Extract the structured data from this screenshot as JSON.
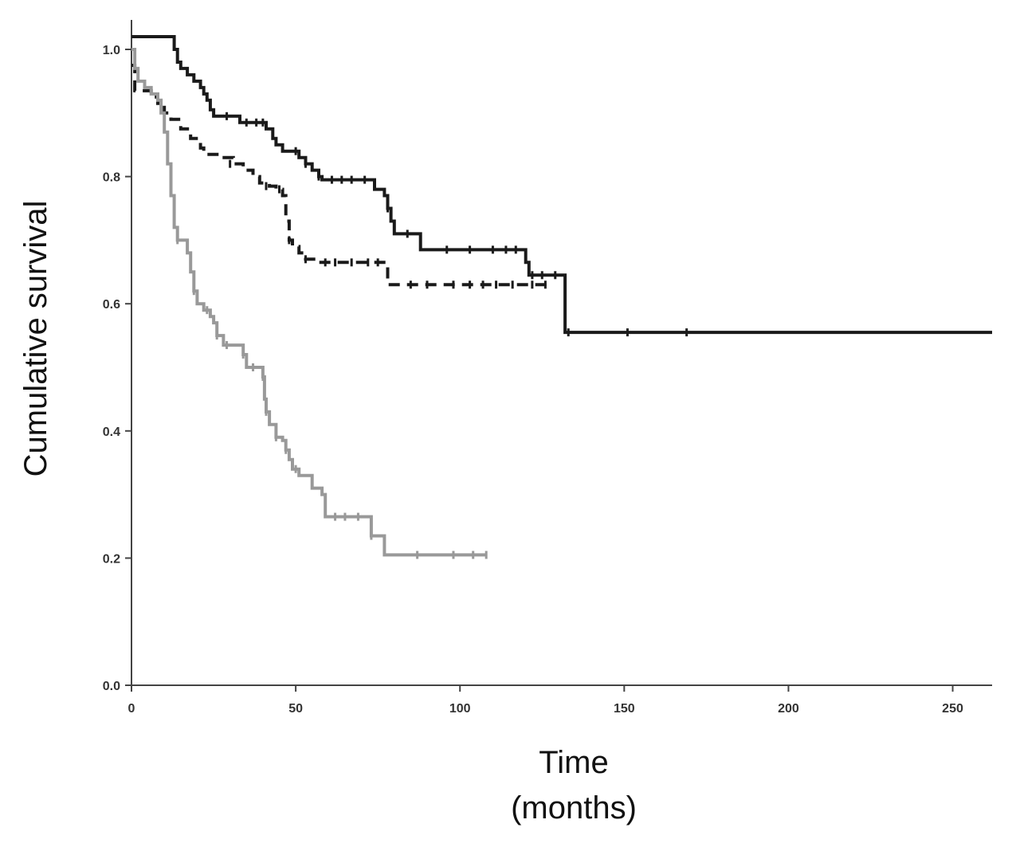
{
  "chart_data": {
    "type": "line",
    "step": true,
    "xlabel": "Time",
    "xlabel_unit": "(months)",
    "ylabel": "Cumulative survival",
    "xlim": [
      0,
      262
    ],
    "ylim": [
      0,
      1.0
    ],
    "x_ticks": [
      0,
      50,
      100,
      150,
      200,
      250
    ],
    "y_ticks": [
      0.0,
      0.2,
      0.4,
      0.6,
      0.8,
      1.0
    ],
    "x_tick_labels": [
      "0",
      "50",
      "100",
      "150",
      "200",
      "250"
    ],
    "y_tick_labels": [
      "0.0",
      "0.2",
      "0.4",
      "0.6",
      "0.8",
      "1.0"
    ],
    "grid": false,
    "legend": "none",
    "series": [
      {
        "style": "solid",
        "color": "#1a1a1a",
        "steps": [
          [
            0,
            1.02
          ],
          [
            12,
            1.02
          ],
          [
            13,
            1.0
          ],
          [
            14,
            0.98
          ],
          [
            15,
            0.97
          ],
          [
            17,
            0.96
          ],
          [
            19,
            0.95
          ],
          [
            21,
            0.94
          ],
          [
            22,
            0.93
          ],
          [
            23,
            0.92
          ],
          [
            24,
            0.905
          ],
          [
            25,
            0.895
          ],
          [
            32,
            0.895
          ],
          [
            33,
            0.885
          ],
          [
            40,
            0.885
          ],
          [
            41,
            0.875
          ],
          [
            43,
            0.86
          ],
          [
            44,
            0.85
          ],
          [
            46,
            0.84
          ],
          [
            50,
            0.84
          ],
          [
            51,
            0.83
          ],
          [
            53,
            0.82
          ],
          [
            55,
            0.81
          ],
          [
            57,
            0.8
          ],
          [
            58,
            0.795
          ],
          [
            73,
            0.795
          ],
          [
            74,
            0.78
          ],
          [
            77,
            0.77
          ],
          [
            78,
            0.75
          ],
          [
            79,
            0.73
          ],
          [
            80,
            0.71
          ],
          [
            87,
            0.71
          ],
          [
            88,
            0.685
          ],
          [
            119,
            0.685
          ],
          [
            120,
            0.665
          ],
          [
            121,
            0.645
          ],
          [
            131,
            0.645
          ],
          [
            132,
            0.555
          ],
          [
            262,
            0.555
          ]
        ],
        "censored": [
          [
            29,
            0.895
          ],
          [
            35,
            0.885
          ],
          [
            38,
            0.885
          ],
          [
            40,
            0.885
          ],
          [
            50,
            0.84
          ],
          [
            53,
            0.82
          ],
          [
            57,
            0.8
          ],
          [
            61,
            0.795
          ],
          [
            64,
            0.795
          ],
          [
            67,
            0.795
          ],
          [
            71,
            0.795
          ],
          [
            78,
            0.75
          ],
          [
            84,
            0.71
          ],
          [
            96,
            0.685
          ],
          [
            103,
            0.685
          ],
          [
            110,
            0.685
          ],
          [
            114,
            0.685
          ],
          [
            117,
            0.685
          ],
          [
            122,
            0.645
          ],
          [
            125,
            0.645
          ],
          [
            129,
            0.645
          ],
          [
            133,
            0.555
          ],
          [
            151,
            0.555
          ],
          [
            169,
            0.555
          ]
        ]
      },
      {
        "style": "dashed",
        "color": "#1a1a1a",
        "steps": [
          [
            0,
            0.975
          ],
          [
            1,
            0.935
          ],
          [
            5,
            0.935
          ],
          [
            6,
            0.925
          ],
          [
            8,
            0.915
          ],
          [
            10,
            0.9
          ],
          [
            12,
            0.89
          ],
          [
            15,
            0.875
          ],
          [
            18,
            0.86
          ],
          [
            21,
            0.845
          ],
          [
            22,
            0.835
          ],
          [
            25,
            0.835
          ],
          [
            27,
            0.83
          ],
          [
            31,
            0.82
          ],
          [
            34,
            0.81
          ],
          [
            37,
            0.8
          ],
          [
            39,
            0.79
          ],
          [
            42,
            0.785
          ],
          [
            44,
            0.78
          ],
          [
            46,
            0.77
          ],
          [
            47,
            0.73
          ],
          [
            48,
            0.7
          ],
          [
            49,
            0.69
          ],
          [
            51,
            0.68
          ],
          [
            53,
            0.67
          ],
          [
            57,
            0.665
          ],
          [
            77,
            0.665
          ],
          [
            78,
            0.63
          ],
          [
            128,
            0.63
          ]
        ],
        "censored": [
          [
            30,
            0.82
          ],
          [
            41,
            0.785
          ],
          [
            45,
            0.78
          ],
          [
            48,
            0.7
          ],
          [
            53,
            0.67
          ],
          [
            59,
            0.665
          ],
          [
            62,
            0.665
          ],
          [
            67,
            0.665
          ],
          [
            72,
            0.665
          ],
          [
            75,
            0.665
          ],
          [
            85,
            0.63
          ],
          [
            90,
            0.63
          ],
          [
            98,
            0.63
          ],
          [
            103,
            0.63
          ],
          [
            107,
            0.63
          ],
          [
            111,
            0.63
          ],
          [
            116,
            0.63
          ],
          [
            122,
            0.63
          ],
          [
            126,
            0.63
          ]
        ]
      },
      {
        "style": "solid",
        "color": "#999999",
        "steps": [
          [
            0,
            1.0
          ],
          [
            1,
            0.97
          ],
          [
            2,
            0.95
          ],
          [
            4,
            0.94
          ],
          [
            6,
            0.93
          ],
          [
            8,
            0.92
          ],
          [
            9,
            0.9
          ],
          [
            10,
            0.87
          ],
          [
            11,
            0.82
          ],
          [
            12,
            0.77
          ],
          [
            13,
            0.72
          ],
          [
            14,
            0.7
          ],
          [
            17,
            0.68
          ],
          [
            18,
            0.65
          ],
          [
            19,
            0.62
          ],
          [
            20,
            0.6
          ],
          [
            22,
            0.59
          ],
          [
            24,
            0.58
          ],
          [
            25,
            0.57
          ],
          [
            26,
            0.55
          ],
          [
            28,
            0.535
          ],
          [
            33,
            0.535
          ],
          [
            34,
            0.52
          ],
          [
            35,
            0.5
          ],
          [
            39,
            0.5
          ],
          [
            40,
            0.485
          ],
          [
            40.5,
            0.45
          ],
          [
            41,
            0.43
          ],
          [
            42,
            0.41
          ],
          [
            44,
            0.39
          ],
          [
            46,
            0.385
          ],
          [
            47,
            0.37
          ],
          [
            48,
            0.355
          ],
          [
            49,
            0.34
          ],
          [
            51,
            0.33
          ],
          [
            54,
            0.33
          ],
          [
            55,
            0.31
          ],
          [
            58,
            0.3
          ],
          [
            59,
            0.265
          ],
          [
            72,
            0.265
          ],
          [
            73,
            0.235
          ],
          [
            76,
            0.235
          ],
          [
            77,
            0.205
          ],
          [
            108,
            0.205
          ]
        ],
        "censored": [
          [
            14,
            0.7
          ],
          [
            19,
            0.62
          ],
          [
            23,
            0.59
          ],
          [
            26,
            0.55
          ],
          [
            29,
            0.535
          ],
          [
            34,
            0.52
          ],
          [
            37,
            0.5
          ],
          [
            40,
            0.485
          ],
          [
            41,
            0.43
          ],
          [
            44,
            0.39
          ],
          [
            47,
            0.37
          ],
          [
            50,
            0.34
          ],
          [
            62,
            0.265
          ],
          [
            65,
            0.265
          ],
          [
            69,
            0.265
          ],
          [
            73,
            0.235
          ],
          [
            87,
            0.205
          ],
          [
            98,
            0.205
          ],
          [
            104,
            0.205
          ],
          [
            108,
            0.205
          ]
        ]
      }
    ]
  }
}
